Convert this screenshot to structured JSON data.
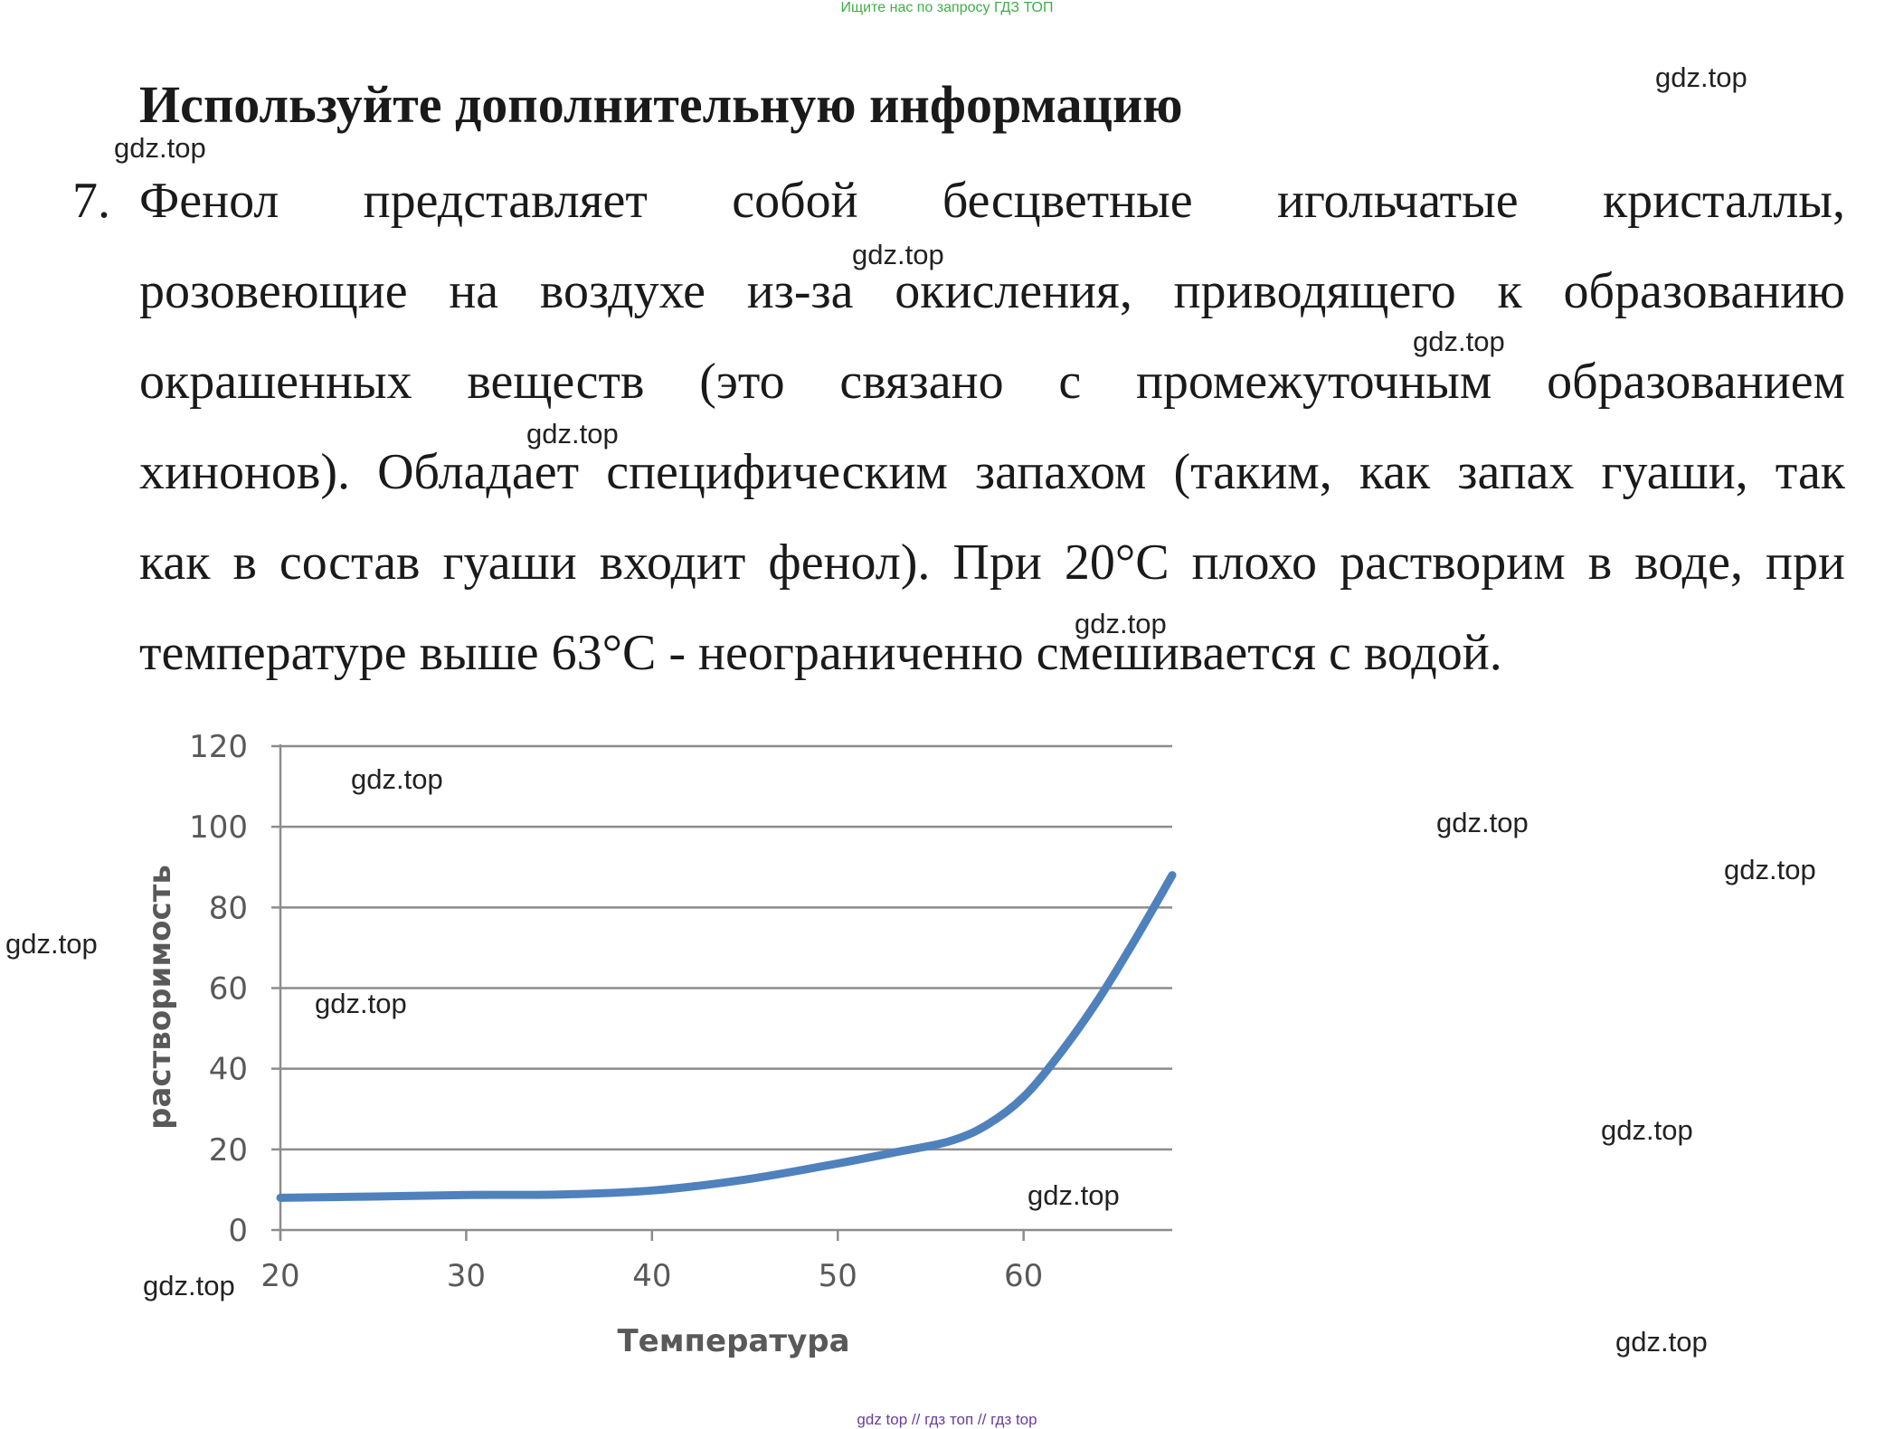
{
  "banner": "Ищите нас по запросу ГДЗ ТОП",
  "heading": "Используйте дополнительную информацию",
  "item_number": "7.",
  "paragraph_lines": [
    "Фенол представляет собой бесцветные игольчатые кристаллы,",
    "розовеющие на воздухе из-за окисления, приводящего к образованию",
    "окрашенных веществ (это связано с промежуточным образованием",
    "хинонов). Обладает специфическим запахом (таким, как запах гуаши, так",
    "как в состав гуаши входит фенол). При 20°C плохо растворим в воде, при",
    "температуре выше 63°C - неограниченно смешивается с водой."
  ],
  "watermark": "gdz.top",
  "footer": "gdz top  //  гдз топ  //  гдз top",
  "chart_data": {
    "type": "line",
    "title": "",
    "xlabel": "Температура",
    "ylabel": "растворимость",
    "xlim": [
      20,
      68
    ],
    "ylim": [
      0,
      120
    ],
    "x_ticks": [
      20,
      30,
      40,
      50,
      60
    ],
    "y_ticks": [
      0,
      20,
      40,
      60,
      80,
      100,
      120
    ],
    "grid": "horizontal",
    "legend": "none",
    "series": [
      {
        "color": "#4f81bd",
        "points": [
          [
            20,
            8
          ],
          [
            25,
            8.3
          ],
          [
            30,
            8.7
          ],
          [
            35,
            8.8
          ],
          [
            40,
            9.8
          ],
          [
            45,
            12.5
          ],
          [
            50,
            16.5
          ],
          [
            53,
            19.2
          ],
          [
            56,
            22
          ],
          [
            58,
            26
          ],
          [
            60,
            33
          ],
          [
            62,
            44
          ],
          [
            64,
            57
          ],
          [
            66,
            72
          ],
          [
            68,
            88
          ]
        ]
      }
    ]
  }
}
